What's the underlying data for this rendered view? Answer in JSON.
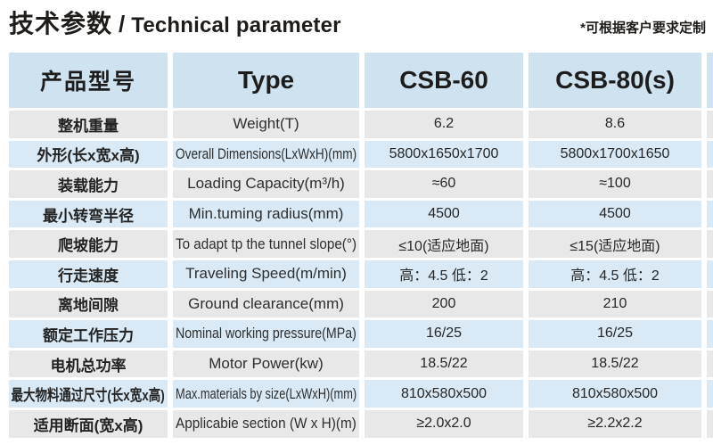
{
  "page": {
    "title_zh": "技术参数",
    "title_sep": "/",
    "title_en": "Technical parameter",
    "note": "*可根据客户要求定制"
  },
  "table": {
    "header": {
      "col1": "产品型号",
      "col2": "Type",
      "col3": "CSB-60",
      "col4": "CSB-80(s)"
    },
    "rows": [
      {
        "zh": "整机重量",
        "en": "Weight(T)",
        "csb60": "6.2",
        "csb80": "8.6"
      },
      {
        "zh": "外形(长x宽x高)",
        "en": "Overall Dimensions(LxWxH)(mm)",
        "csb60": "5800x1650x1700",
        "csb80": "5800x1700x1650"
      },
      {
        "zh": "装载能力",
        "en": "Loading Capacity(m³/h)",
        "csb60": "≈60",
        "csb80": "≈100"
      },
      {
        "zh": "最小转弯半径",
        "en": "Min.tuming radius(mm)",
        "csb60": "4500",
        "csb80": "4500"
      },
      {
        "zh": "爬坡能力",
        "en": "To adapt tp the tunnel slope(°)",
        "csb60": "≤10(适应地面)",
        "csb80": "≤15(适应地面)"
      },
      {
        "zh": "行走速度",
        "en": "Traveling Speed(m/min)",
        "csb60": "高：4.5 低：2",
        "csb80": "高：4.5 低：2"
      },
      {
        "zh": "离地间隙",
        "en": "Ground clearance(mm)",
        "csb60": "200",
        "csb80": "210"
      },
      {
        "zh": "额定工作压力",
        "en": "Nominal working pressure(MPa)",
        "csb60": "16/25",
        "csb80": "16/25"
      },
      {
        "zh": "电机总功率",
        "en": "Motor Power(kw)",
        "csb60": "18.5/22",
        "csb80": "18.5/22"
      },
      {
        "zh": "最大物料通过尺寸(长x宽x高)",
        "en": "Max.materials by size(LxWxH)(mm)",
        "csb60": "810x580x500",
        "csb80": "810x580x500"
      },
      {
        "zh": "适用断面(宽x高)",
        "en": "Applicabie section (W x H)(m)",
        "csb60": "≥2.0x2.0",
        "csb80": "≥2.2x2.2"
      }
    ],
    "colors": {
      "header_bg": "#cfe2ef",
      "row_blue": "#d9eaf6",
      "row_gray": "#e8e8e8"
    }
  }
}
